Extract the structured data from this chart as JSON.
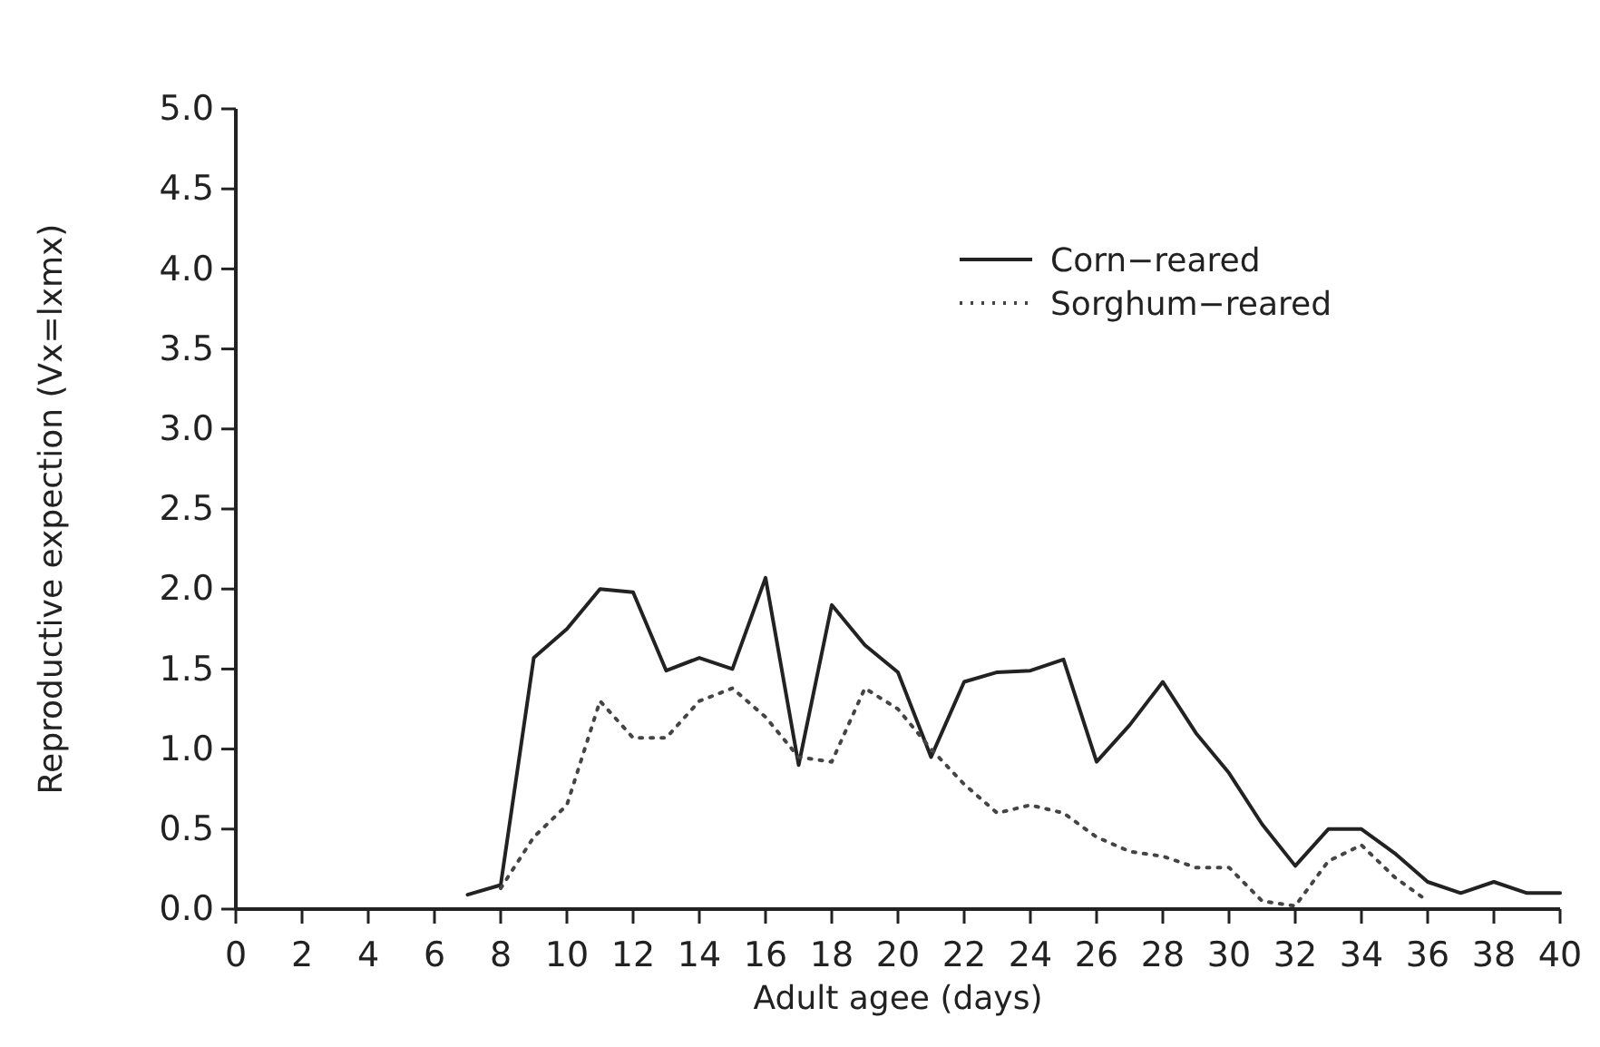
{
  "chart_data": {
    "type": "line",
    "xlabel": "Adult agee (days)",
    "ylabel": "Reproductive expection (Vx=lxmx)",
    "xlim": [
      0,
      40
    ],
    "ylim": [
      0,
      5
    ],
    "xticks": [
      0,
      2,
      4,
      6,
      8,
      10,
      12,
      14,
      16,
      18,
      20,
      22,
      24,
      26,
      28,
      30,
      32,
      34,
      36,
      38,
      40
    ],
    "yticks": [
      {
        "value": 0,
        "label": "0.0"
      },
      {
        "value": 0.5,
        "label": "0.5"
      },
      {
        "value": 1,
        "label": "1.0"
      },
      {
        "value": 1.5,
        "label": "1.5"
      },
      {
        "value": 2,
        "label": "2.0"
      },
      {
        "value": 2.5,
        "label": "2.5"
      },
      {
        "value": 3,
        "label": "3.0"
      },
      {
        "value": 3.5,
        "label": "3.5"
      },
      {
        "value": 4,
        "label": "4.0"
      },
      {
        "value": 4.5,
        "label": "4.5"
      },
      {
        "value": 5,
        "label": "5.0"
      }
    ],
    "grid": false,
    "legend": "top right",
    "marker": "none",
    "series": [
      {
        "name": "Corn−reared",
        "color": "#222222",
        "line_style": "solid",
        "x": [
          7,
          8,
          9,
          10,
          11,
          12,
          13,
          14,
          15,
          16,
          17,
          18,
          19,
          20,
          21,
          22,
          23,
          24,
          25,
          26,
          27,
          28,
          29,
          30,
          31,
          32,
          33,
          34,
          35,
          36,
          37,
          38,
          39,
          40
        ],
        "values": [
          0.09,
          0.15,
          1.57,
          1.75,
          2.0,
          1.98,
          1.49,
          1.57,
          1.5,
          2.07,
          0.9,
          1.9,
          1.65,
          1.48,
          0.95,
          1.42,
          1.48,
          1.49,
          1.56,
          0.92,
          1.15,
          1.42,
          1.1,
          0.85,
          0.53,
          0.27,
          0.5,
          0.5,
          0.35,
          0.17,
          0.1,
          0.17,
          0.1,
          0.1
        ]
      },
      {
        "name": "Sorghum−reared",
        "color": "#444444",
        "line_style": "dotted",
        "x": [
          8,
          9,
          10,
          11,
          12,
          13,
          14,
          15,
          16,
          17,
          18,
          19,
          20,
          21,
          22,
          23,
          24,
          25,
          26,
          27,
          28,
          29,
          30,
          31,
          32,
          33,
          34,
          35,
          36
        ],
        "values": [
          0.13,
          0.45,
          0.65,
          1.3,
          1.07,
          1.07,
          1.3,
          1.38,
          1.2,
          0.95,
          0.92,
          1.38,
          1.25,
          1.0,
          0.78,
          0.6,
          0.65,
          0.6,
          0.45,
          0.36,
          0.33,
          0.26,
          0.26,
          0.05,
          0.02,
          0.3,
          0.4,
          0.2,
          0.05
        ]
      }
    ]
  }
}
